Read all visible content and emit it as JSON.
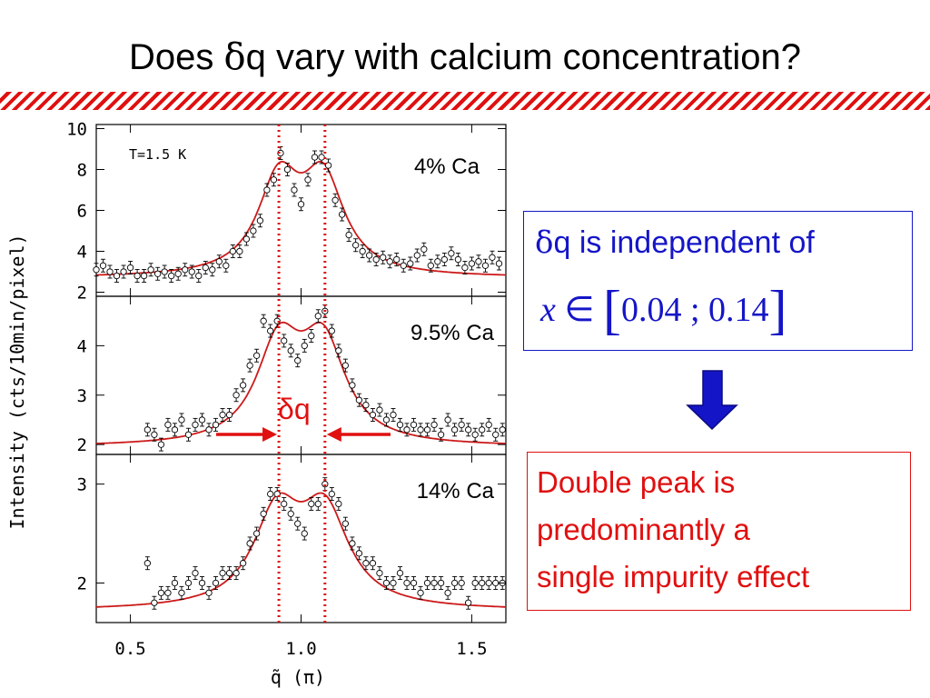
{
  "slide": {
    "title_prefix": "Does ",
    "title_symbol": "δ",
    "title_suffix": "q vary with calcium concentration?"
  },
  "colors": {
    "accent_red": "#e01010",
    "accent_blue": "#1515c8",
    "fit": "#cc1a1a"
  },
  "chart_data": [
    {
      "type": "scatter",
      "panel_label": "4% Ca",
      "annotation": "T=1.5 K",
      "ylabel": "Intensity (cts/10min/pixel)",
      "ylim": [
        1.8,
        10.2
      ],
      "yticks": [
        "2",
        "4",
        "6",
        "8",
        "10"
      ],
      "xlim": [
        0.4,
        1.6
      ],
      "x": [
        0.4,
        0.42,
        0.44,
        0.46,
        0.48,
        0.5,
        0.52,
        0.54,
        0.56,
        0.58,
        0.6,
        0.62,
        0.64,
        0.66,
        0.68,
        0.7,
        0.72,
        0.74,
        0.76,
        0.78,
        0.8,
        0.82,
        0.84,
        0.86,
        0.88,
        0.9,
        0.92,
        0.94,
        0.96,
        0.98,
        1.0,
        1.02,
        1.04,
        1.06,
        1.08,
        1.1,
        1.12,
        1.14,
        1.16,
        1.18,
        1.2,
        1.22,
        1.24,
        1.26,
        1.28,
        1.3,
        1.32,
        1.34,
        1.36,
        1.38,
        1.4,
        1.42,
        1.44,
        1.46,
        1.48,
        1.5,
        1.52,
        1.54,
        1.56,
        1.58
      ],
      "series": [
        {
          "values": [
            3.1,
            3.3,
            3.0,
            2.8,
            3.0,
            3.2,
            2.8,
            2.8,
            3.1,
            2.9,
            3.0,
            2.8,
            2.9,
            3.1,
            3.0,
            2.8,
            3.2,
            3.1,
            3.5,
            3.3,
            4.0,
            4.0,
            4.6,
            5.0,
            5.5,
            7.0,
            7.5,
            8.8,
            8.0,
            7.0,
            6.3,
            7.5,
            8.6,
            8.6,
            8.2,
            6.5,
            5.8,
            4.8,
            4.3,
            4.0,
            3.8,
            3.6,
            3.7,
            3.5,
            3.6,
            3.3,
            3.4,
            3.8,
            4.1,
            3.3,
            3.5,
            3.6,
            3.9,
            3.6,
            3.2,
            3.4,
            3.5,
            3.3,
            3.7,
            3.4
          ]
        }
      ]
    },
    {
      "type": "scatter",
      "panel_label": "9.5% Ca",
      "ylim": [
        1.8,
        5.0
      ],
      "yticks": [
        "2",
        "3",
        "4"
      ],
      "xlim": [
        0.4,
        1.6
      ],
      "x": [
        0.55,
        0.57,
        0.59,
        0.61,
        0.63,
        0.65,
        0.67,
        0.69,
        0.71,
        0.73,
        0.75,
        0.77,
        0.79,
        0.81,
        0.83,
        0.85,
        0.87,
        0.89,
        0.91,
        0.93,
        0.95,
        0.97,
        0.99,
        1.01,
        1.03,
        1.05,
        1.07,
        1.09,
        1.11,
        1.13,
        1.15,
        1.17,
        1.19,
        1.21,
        1.23,
        1.25,
        1.27,
        1.29,
        1.31,
        1.33,
        1.35,
        1.37,
        1.39,
        1.41,
        1.43,
        1.45,
        1.47,
        1.49,
        1.51,
        1.53,
        1.55,
        1.57,
        1.59
      ],
      "series": [
        {
          "values": [
            2.3,
            2.2,
            2.0,
            2.4,
            2.3,
            2.5,
            2.2,
            2.4,
            2.5,
            2.3,
            2.4,
            2.6,
            2.6,
            3.0,
            3.2,
            3.6,
            3.8,
            4.5,
            4.3,
            4.5,
            4.1,
            3.9,
            3.7,
            4.0,
            4.2,
            4.6,
            4.7,
            4.3,
            3.9,
            3.6,
            3.2,
            2.9,
            2.8,
            2.6,
            2.7,
            2.5,
            2.6,
            2.4,
            2.3,
            2.4,
            2.3,
            2.3,
            2.4,
            2.2,
            2.5,
            2.3,
            2.4,
            2.3,
            2.2,
            2.3,
            2.4,
            2.2,
            2.3
          ]
        }
      ]
    },
    {
      "type": "scatter",
      "panel_label": "14% Ca",
      "xlabel": "q̃ (π)",
      "ylim": [
        1.6,
        3.3
      ],
      "yticks": [
        "2",
        "3"
      ],
      "xlim": [
        0.4,
        1.6
      ],
      "xticks": [
        "0.5",
        "1.0",
        "1.5"
      ],
      "x": [
        0.55,
        0.57,
        0.59,
        0.61,
        0.63,
        0.65,
        0.67,
        0.69,
        0.71,
        0.73,
        0.75,
        0.77,
        0.79,
        0.81,
        0.83,
        0.85,
        0.87,
        0.89,
        0.91,
        0.93,
        0.95,
        0.97,
        0.99,
        1.01,
        1.03,
        1.05,
        1.07,
        1.09,
        1.11,
        1.13,
        1.15,
        1.17,
        1.19,
        1.21,
        1.23,
        1.25,
        1.27,
        1.29,
        1.31,
        1.33,
        1.35,
        1.37,
        1.39,
        1.41,
        1.43,
        1.45,
        1.47,
        1.49,
        1.51,
        1.53,
        1.55,
        1.57,
        1.59
      ],
      "series": [
        {
          "values": [
            2.2,
            1.8,
            1.9,
            1.9,
            2.0,
            1.9,
            2.0,
            2.1,
            2.0,
            1.9,
            2.0,
            2.1,
            2.1,
            2.1,
            2.2,
            2.4,
            2.5,
            2.7,
            2.9,
            2.9,
            2.8,
            2.7,
            2.6,
            2.5,
            2.8,
            2.8,
            3.0,
            2.9,
            2.8,
            2.6,
            2.4,
            2.3,
            2.2,
            2.2,
            2.1,
            2.0,
            2.0,
            2.1,
            2.0,
            2.0,
            1.9,
            2.0,
            2.0,
            2.0,
            1.9,
            2.0,
            2.0,
            1.8,
            2.0,
            2.0,
            2.0,
            2.0,
            2.0
          ]
        }
      ]
    }
  ],
  "annotation_dq": "δq",
  "box_independent": {
    "line1_symbol": "δ",
    "line1_text": "q is independent of",
    "formula_x": "x",
    "formula_in": " ∈ ",
    "bracket_open": "[",
    "formula_range": "0.04   ; 0.14",
    "bracket_close": "]"
  },
  "box_conclusion": {
    "lines": [
      "Double peak is",
      "predominantly a",
      "single impurity effect"
    ]
  }
}
